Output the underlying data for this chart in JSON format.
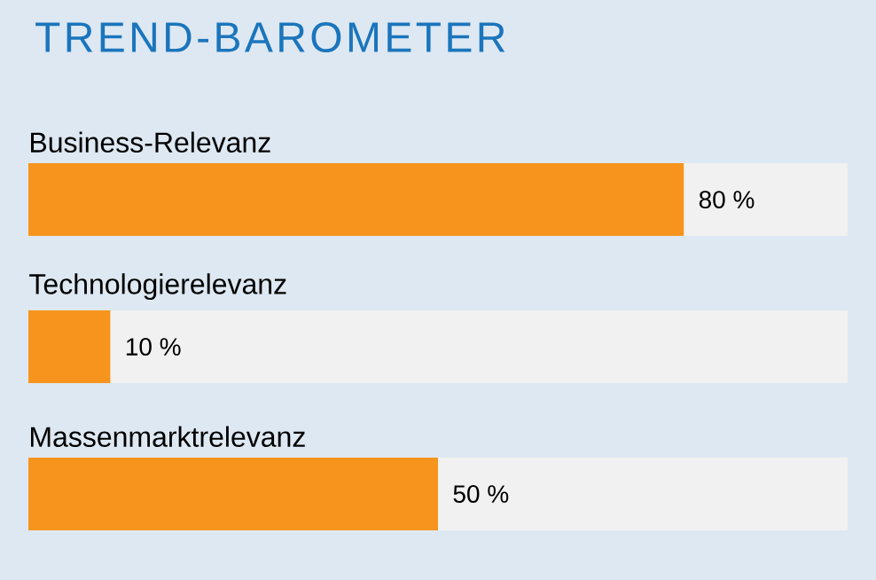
{
  "chart_data": {
    "type": "bar",
    "orientation": "horizontal",
    "title": "TREND-BAROMETER",
    "categories": [
      "Business-Relevanz",
      "Technologierelevanz",
      "Massenmarktrelevanz"
    ],
    "values": [
      80,
      10,
      50
    ],
    "value_labels": [
      "80 %",
      "10 %",
      "50 %"
    ],
    "color": "#f7941d",
    "xlim": [
      0,
      100
    ],
    "tick_labels": false
  }
}
